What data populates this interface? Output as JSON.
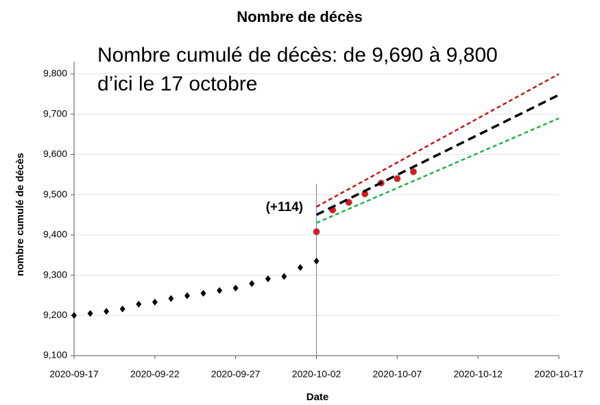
{
  "chart_data": {
    "type": "line",
    "title": "Nombre de décès",
    "annotations": [
      "Nombre cumulé de décès: de 9,690 à 9,800",
      "d’ici le 17 octobre",
      "(+114)"
    ],
    "x_label": "Date",
    "y_label": "nombre cumulé de décès",
    "xlim": [
      "2020-09-17",
      "2020-10-17"
    ],
    "xticks": [
      "2020-09-17",
      "2020-09-22",
      "2020-09-27",
      "2020-10-02",
      "2020-10-07",
      "2020-10-12",
      "2020-10-17"
    ],
    "ylim": [
      9100,
      9800
    ],
    "yticks": [
      {
        "value": 9100,
        "label": "9,100"
      },
      {
        "value": 9200,
        "label": "9,200"
      },
      {
        "value": 9300,
        "label": "9,300"
      },
      {
        "value": 9400,
        "label": "9,400"
      },
      {
        "value": 9500,
        "label": "9,500"
      },
      {
        "value": 9600,
        "label": "9,600"
      },
      {
        "value": 9700,
        "label": "9,700"
      },
      {
        "value": 9800,
        "label": "9,800"
      }
    ],
    "grid": true,
    "vline": "2020-10-02",
    "series": [
      {
        "color": "#000000",
        "marker": "diamond",
        "x": [
          "2020-09-17",
          "2020-09-18",
          "2020-09-19",
          "2020-09-20",
          "2020-09-21",
          "2020-09-22",
          "2020-09-23",
          "2020-09-24",
          "2020-09-25",
          "2020-09-26",
          "2020-09-27",
          "2020-09-28",
          "2020-09-29",
          "2020-09-30",
          "2020-10-01",
          "2020-10-02"
        ],
        "values": [
          9200,
          9205,
          9210,
          9216,
          9228,
          9233,
          9242,
          9249,
          9255,
          9262,
          9268,
          9279,
          9291,
          9297,
          9319,
          9335
        ]
      },
      {
        "color": "#e8141c",
        "marker": "circle",
        "x": [
          "2020-10-02",
          "2020-10-03",
          "2020-10-04",
          "2020-10-05",
          "2020-10-06",
          "2020-10-07",
          "2020-10-08"
        ],
        "values": [
          9408,
          9462,
          9481,
          9502,
          9529,
          9540,
          9557
        ]
      },
      {
        "color": "#c0181c",
        "marker": "dashed",
        "x": [
          "2020-10-02",
          "2020-10-17"
        ],
        "values": [
          9470,
          9800
        ]
      },
      {
        "color": "#000000",
        "marker": "dashed",
        "x": [
          "2020-10-02",
          "2020-10-17"
        ],
        "values": [
          9450,
          9748
        ]
      },
      {
        "color": "#22b04a",
        "marker": "dashed",
        "x": [
          "2020-10-02",
          "2020-10-17"
        ],
        "values": [
          9430,
          9690
        ]
      }
    ]
  }
}
